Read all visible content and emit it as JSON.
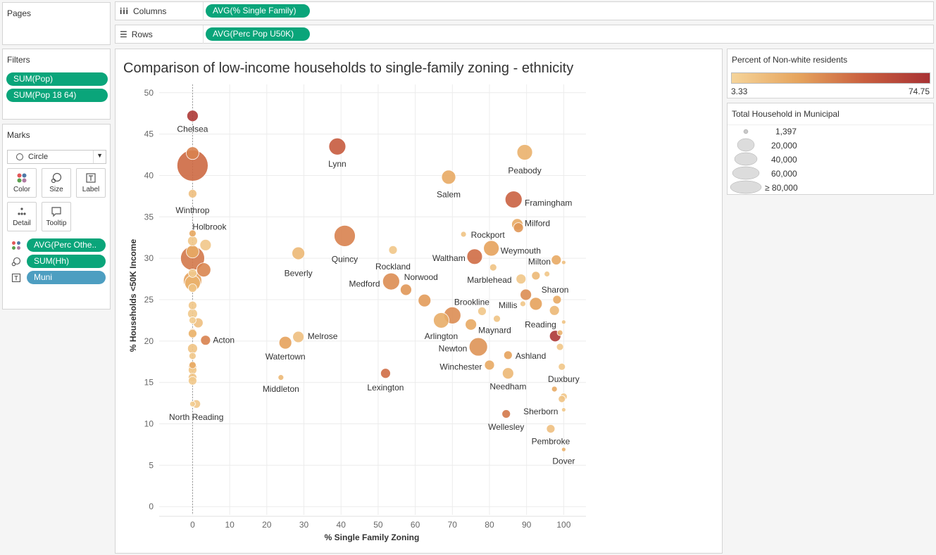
{
  "pages": {
    "title": "Pages"
  },
  "shelves": {
    "columns": {
      "label": "Columns",
      "pill": "AVG(% Single Family)"
    },
    "rows": {
      "label": "Rows",
      "pill": "AVG(Perc Pop U50K)"
    }
  },
  "filters": {
    "title": "Filters",
    "items": [
      "SUM(Pop)",
      "SUM(Pop 18 64)"
    ]
  },
  "marks": {
    "title": "Marks",
    "type": "Circle",
    "buttons": [
      "Color",
      "Size",
      "Label",
      "Detail",
      "Tooltip"
    ],
    "fields": [
      {
        "icon": "color-dots-icon",
        "label": "AVG(Perc Othe.."
      },
      {
        "icon": "size-icon",
        "label": "SUM(Hh)"
      },
      {
        "icon": "label-icon",
        "label": "Muni"
      }
    ]
  },
  "color_legend": {
    "title": "Percent of Non-white residents",
    "min": "3.33",
    "max": "74.75",
    "colors": [
      "#f5d49a",
      "#e6a55e",
      "#c95f3f",
      "#a83234"
    ]
  },
  "size_legend": {
    "title": "Total Household in Municipal",
    "items": [
      "1,397",
      "20,000",
      "40,000",
      "60,000",
      "≥ 80,000"
    ]
  },
  "chart_data": {
    "type": "scatter",
    "title": "Comparison of low-income households to single-family zoning - ethnicity",
    "xlabel": "% Single Family Zoning",
    "ylabel": "% Households <50K Income",
    "xlim": [
      -9,
      106
    ],
    "ylim": [
      -1,
      51
    ],
    "xticks": [
      0,
      10,
      20,
      30,
      40,
      50,
      60,
      70,
      80,
      90,
      100
    ],
    "yticks": [
      0,
      5,
      10,
      15,
      20,
      25,
      30,
      35,
      40,
      45,
      50
    ],
    "grid": true,
    "zero_line": true,
    "points": [
      {
        "x": 0,
        "y": 47.2,
        "r": 8,
        "c": 0.95,
        "label": "Chelsea",
        "lx": 0,
        "ly": 45.6,
        "la": "middle"
      },
      {
        "x": 0,
        "y": 42.7,
        "r": 9,
        "c": 0.5
      },
      {
        "x": 0,
        "y": 41.2,
        "r": 22,
        "c": 0.62
      },
      {
        "x": 0,
        "y": 37.8,
        "r": 6,
        "c": 0.15,
        "label": "Winthrop",
        "lx": 0,
        "ly": 35.8,
        "la": "middle"
      },
      {
        "x": 0,
        "y": 33,
        "r": 5,
        "c": 0.32,
        "label": "Holbrook",
        "lx": 0,
        "ly": 33.8,
        "la": "start",
        "ldx": 0
      },
      {
        "x": 0,
        "y": 32.1,
        "r": 7,
        "c": 0.1
      },
      {
        "x": 3.5,
        "y": 31.6,
        "r": 8,
        "c": 0.1
      },
      {
        "x": 0,
        "y": 30.8,
        "r": 9,
        "c": 0.3
      },
      {
        "x": 0,
        "y": 30.0,
        "r": 17,
        "c": 0.55
      },
      {
        "x": 3,
        "y": 28.6,
        "r": 10,
        "c": 0.48
      },
      {
        "x": 0,
        "y": 28.2,
        "r": 6,
        "c": 0.08
      },
      {
        "x": 0,
        "y": 27.3,
        "r": 13,
        "c": 0.35
      },
      {
        "x": 0,
        "y": 27.0,
        "r": 11,
        "c": 0.25
      },
      {
        "x": 0,
        "y": 26.4,
        "r": 6,
        "c": 0.12
      },
      {
        "x": 0,
        "y": 24.3,
        "r": 6,
        "c": 0.1
      },
      {
        "x": 0,
        "y": 23.3,
        "r": 7,
        "c": 0.08
      },
      {
        "x": 0,
        "y": 22.5,
        "r": 5,
        "c": 0.06
      },
      {
        "x": 1.5,
        "y": 22.2,
        "r": 7,
        "c": 0.15
      },
      {
        "x": 0,
        "y": 21.0,
        "r": 6,
        "c": 0.3
      },
      {
        "x": 0,
        "y": 20.9,
        "r": 6,
        "c": 0.2
      },
      {
        "x": 3.5,
        "y": 20.1,
        "r": 7,
        "c": 0.5,
        "label": "Acton",
        "lx": 5.5,
        "ly": 20.1,
        "la": "start"
      },
      {
        "x": 0,
        "y": 19.1,
        "r": 7,
        "c": 0.12
      },
      {
        "x": 0,
        "y": 18.2,
        "r": 5,
        "c": 0.1
      },
      {
        "x": 0,
        "y": 17.1,
        "r": 5,
        "c": 0.3
      },
      {
        "x": 0,
        "y": 16.9,
        "r": 6,
        "c": 0.14
      },
      {
        "x": 0,
        "y": 16.5,
        "r": 6,
        "c": 0.1
      },
      {
        "x": 0,
        "y": 15.6,
        "r": 6,
        "c": 0.12
      },
      {
        "x": 0,
        "y": 15.2,
        "r": 6,
        "c": 0.08
      },
      {
        "x": 0,
        "y": 12.4,
        "r": 4,
        "c": 0.06
      },
      {
        "x": 1,
        "y": 12.4,
        "r": 6,
        "c": 0.1,
        "label": "North Reading",
        "lx": 1,
        "ly": 10.8,
        "la": "middle"
      },
      {
        "x": 39,
        "y": 43.5,
        "r": 12,
        "c": 0.7,
        "label": "Lynn",
        "lx": 39,
        "ly": 41.4,
        "la": "middle"
      },
      {
        "x": 89.5,
        "y": 42.8,
        "r": 11,
        "c": 0.25,
        "label": "Peabody",
        "lx": 89.5,
        "ly": 40.6,
        "la": "middle"
      },
      {
        "x": 69,
        "y": 39.8,
        "r": 10,
        "c": 0.3,
        "label": "Salem",
        "lx": 69,
        "ly": 37.7,
        "la": "middle"
      },
      {
        "x": 86.5,
        "y": 37.1,
        "r": 12,
        "c": 0.65,
        "label": "Framingham",
        "lx": 89.5,
        "ly": 36.7,
        "la": "start"
      },
      {
        "x": 87.5,
        "y": 34.1,
        "r": 8,
        "c": 0.3
      },
      {
        "x": 87.8,
        "y": 33.7,
        "r": 7,
        "c": 0.4,
        "label": "Milford",
        "lx": 89.5,
        "ly": 34.2,
        "la": "start"
      },
      {
        "x": 73,
        "y": 32.9,
        "r": 4,
        "c": 0.12,
        "label": "Rockport",
        "lx": 75,
        "ly": 32.8,
        "la": "start"
      },
      {
        "x": 41,
        "y": 32.7,
        "r": 15,
        "c": 0.5,
        "label": "Quincy",
        "lx": 41,
        "ly": 29.9,
        "la": "middle"
      },
      {
        "x": 80.5,
        "y": 31.2,
        "r": 11,
        "c": 0.35,
        "label": "Weymouth",
        "lx": 83,
        "ly": 30.9,
        "la": "start"
      },
      {
        "x": 54,
        "y": 31.0,
        "r": 6,
        "c": 0.1,
        "label": "Rockland",
        "lx": 54,
        "ly": 29.0,
        "la": "middle"
      },
      {
        "x": 28.5,
        "y": 30.6,
        "r": 9,
        "c": 0.2,
        "label": "Beverly",
        "lx": 28.5,
        "ly": 28.2,
        "la": "middle"
      },
      {
        "x": 76,
        "y": 30.2,
        "r": 11,
        "c": 0.6,
        "label": "Waltham",
        "lx": 73.5,
        "ly": 30.0,
        "la": "end"
      },
      {
        "x": 98,
        "y": 29.8,
        "r": 7,
        "c": 0.3,
        "label": "Milton",
        "lx": 96.5,
        "ly": 29.6,
        "la": "end"
      },
      {
        "x": 100,
        "y": 29.5,
        "r": 3,
        "c": 0.15
      },
      {
        "x": 81,
        "y": 28.9,
        "r": 5,
        "c": 0.12
      },
      {
        "x": 92.5,
        "y": 27.9,
        "r": 6,
        "c": 0.2
      },
      {
        "x": 95.5,
        "y": 28.1,
        "r": 4,
        "c": 0.1
      },
      {
        "x": 88.5,
        "y": 27.5,
        "r": 7,
        "c": 0.1,
        "label": "Marblehead",
        "lx": 86,
        "ly": 27.4,
        "la": "end"
      },
      {
        "x": 53.5,
        "y": 27.2,
        "r": 12,
        "c": 0.45,
        "label": "Medford",
        "lx": 50.5,
        "ly": 26.9,
        "la": "end"
      },
      {
        "x": 57.5,
        "y": 26.2,
        "r": 8,
        "c": 0.4,
        "label": "Norwood",
        "lx": 57,
        "ly": 27.7,
        "la": "start"
      },
      {
        "x": 89.8,
        "y": 25.6,
        "r": 8,
        "c": 0.45,
        "label": "Sharon",
        "lx": 94,
        "ly": 26.2,
        "la": "start"
      },
      {
        "x": 62.5,
        "y": 24.9,
        "r": 9,
        "c": 0.38
      },
      {
        "x": 98.2,
        "y": 25.0,
        "r": 6,
        "c": 0.3
      },
      {
        "x": 92.5,
        "y": 24.5,
        "r": 9,
        "c": 0.35
      },
      {
        "x": 89,
        "y": 24.5,
        "r": 4,
        "c": 0.1,
        "label": "Millis",
        "lx": 87.5,
        "ly": 24.3,
        "la": "end"
      },
      {
        "x": 70,
        "y": 23.1,
        "r": 12,
        "c": 0.45,
        "label": "Brookline",
        "lx": 70.5,
        "ly": 24.7,
        "la": "start"
      },
      {
        "x": 78,
        "y": 23.6,
        "r": 6,
        "c": 0.1
      },
      {
        "x": 97.5,
        "y": 23.7,
        "r": 7,
        "c": 0.2
      },
      {
        "x": 67,
        "y": 22.5,
        "r": 11,
        "c": 0.28,
        "label": "Arlington",
        "lx": 67,
        "ly": 20.6,
        "la": "middle"
      },
      {
        "x": 82,
        "y": 22.7,
        "r": 5,
        "c": 0.12
      },
      {
        "x": 75,
        "y": 22.0,
        "r": 8,
        "c": 0.3,
        "label": "Maynard",
        "lx": 77,
        "ly": 21.3,
        "la": "start"
      },
      {
        "x": 100,
        "y": 22.3,
        "r": 3,
        "c": 0.12,
        "label": "Reading",
        "lx": 98,
        "ly": 22.0,
        "la": "end"
      },
      {
        "x": 97.7,
        "y": 20.6,
        "r": 8,
        "c": 0.95
      },
      {
        "x": 99,
        "y": 21.0,
        "r": 4,
        "c": 0.25
      },
      {
        "x": 28.5,
        "y": 20.5,
        "r": 8,
        "c": 0.15,
        "label": "Melrose",
        "lx": 31,
        "ly": 20.6,
        "la": "start"
      },
      {
        "x": 25,
        "y": 19.8,
        "r": 9,
        "c": 0.35,
        "label": "Watertown",
        "lx": 25,
        "ly": 18.1,
        "la": "middle"
      },
      {
        "x": 77,
        "y": 19.3,
        "r": 13,
        "c": 0.42,
        "label": "Newton",
        "lx": 74,
        "ly": 19.1,
        "la": "end"
      },
      {
        "x": 99,
        "y": 19.3,
        "r": 5,
        "c": 0.1
      },
      {
        "x": 85,
        "y": 18.3,
        "r": 6,
        "c": 0.35,
        "label": "Ashland",
        "lx": 87,
        "ly": 18.2,
        "la": "start"
      },
      {
        "x": 80,
        "y": 17.1,
        "r": 7,
        "c": 0.3,
        "label": "Winchester",
        "lx": 78,
        "ly": 16.9,
        "la": "end"
      },
      {
        "x": 99.5,
        "y": 16.9,
        "r": 5,
        "c": 0.1,
        "label": "Duxbury",
        "lx": 100,
        "ly": 15.4,
        "la": "middle"
      },
      {
        "x": 85,
        "y": 16.1,
        "r": 8,
        "c": 0.2,
        "label": "Needham",
        "lx": 85,
        "ly": 14.5,
        "la": "middle"
      },
      {
        "x": 52,
        "y": 16.1,
        "r": 7,
        "c": 0.6,
        "label": "Lexington",
        "lx": 52,
        "ly": 14.4,
        "la": "middle"
      },
      {
        "x": 23.8,
        "y": 15.6,
        "r": 4,
        "c": 0.2,
        "label": "Middleton",
        "lx": 23.8,
        "ly": 14.2,
        "la": "middle"
      },
      {
        "x": 97.5,
        "y": 14.2,
        "r": 4,
        "c": 0.3
      },
      {
        "x": 100,
        "y": 13.3,
        "r": 5,
        "c": 0.1
      },
      {
        "x": 99.5,
        "y": 13.0,
        "r": 5,
        "c": 0.12
      },
      {
        "x": 100,
        "y": 11.7,
        "r": 3,
        "c": 0.08,
        "label": "Sherborn",
        "lx": 98.5,
        "ly": 11.5,
        "la": "end"
      },
      {
        "x": 84.5,
        "y": 11.2,
        "r": 6,
        "c": 0.55,
        "label": "Wellesley",
        "lx": 84.5,
        "ly": 9.6,
        "la": "middle"
      },
      {
        "x": 96.5,
        "y": 9.4,
        "r": 6,
        "c": 0.15,
        "label": "Pembroke",
        "lx": 96.5,
        "ly": 7.9,
        "la": "middle"
      },
      {
        "x": 100,
        "y": 6.9,
        "r": 3,
        "c": 0.25,
        "label": "Dover",
        "lx": 100,
        "ly": 5.5,
        "la": "middle"
      }
    ]
  }
}
